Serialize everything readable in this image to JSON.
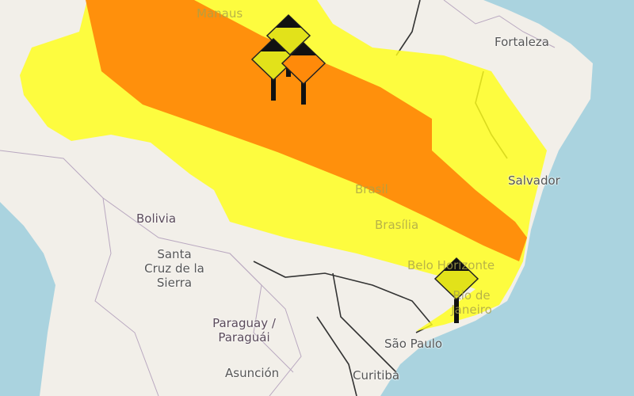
{
  "colors": {
    "ocean": "#aad3df",
    "land": "#f2efe9",
    "alert_yellow": "#ffff1a",
    "alert_orange": "#ff8a0a",
    "border": "#333333"
  },
  "labels": {
    "manaus": "Manaus",
    "fortaleza": "Fortaleza",
    "salvador": "Salvador",
    "brasil": "Brasil",
    "brasilia": "Brasília",
    "belo_horizonte": "Belo Horizonte",
    "rio": "Rio de Janeiro",
    "sao_paulo": "São Paulo",
    "curitiba": "Curitiba",
    "bolivia": "Bolivia",
    "santa_cruz": "Santa Cruz de la Sierra",
    "paraguay": "Paraguay / Paraguái",
    "asuncion": "Asunción"
  },
  "markers": [
    {
      "icon": "warning-diamond-icon",
      "level": "yellow"
    },
    {
      "icon": "warning-diamond-icon",
      "level": "yellow"
    },
    {
      "icon": "warning-diamond-icon",
      "level": "orange"
    },
    {
      "icon": "warning-diamond-icon",
      "level": "yellow"
    }
  ]
}
